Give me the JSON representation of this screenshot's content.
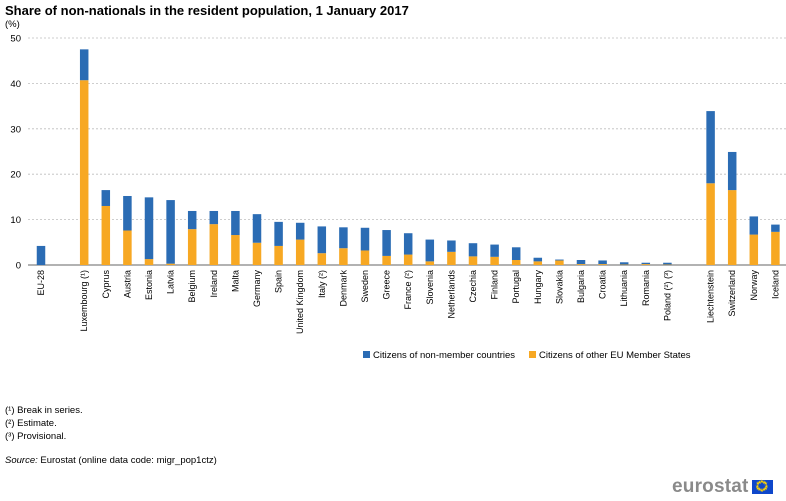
{
  "colors": {
    "non_member": "#2b6cb4",
    "eu_member": "#f7a823",
    "grid": "#bdbdbd",
    "axis": "#666666",
    "logo_text": "#8a8a8a",
    "flag_blue": "#0e47cb",
    "flag_star": "#ffd400"
  },
  "chart_data": {
    "type": "bar",
    "stacked": true,
    "title": "Share of non-nationals in the resident population, 1 January 2017",
    "ylabel": "(%)",
    "ylim": [
      0,
      50
    ],
    "yticks": [
      0,
      10,
      20,
      30,
      40,
      50
    ],
    "grid": true,
    "legend_position": "bottom-center",
    "groups": [
      [
        "EU-28"
      ],
      [
        "Luxembourg (¹)",
        "Cyprus",
        "Austria",
        "Estonia",
        "Latvia",
        "Belgium",
        "Ireland",
        "Malta",
        "Germany",
        "Spain",
        "United Kingdom",
        "Italy (²)",
        "Denmark",
        "Sweden",
        "Greece",
        "France (²)",
        "Slovenia",
        "Netherlands",
        "Czechia",
        "Finland",
        "Portugal",
        "Hungary",
        "Slovakia",
        "Bulgaria",
        "Croatia",
        "Lithuania",
        "Romania",
        "Poland (²) (³)"
      ],
      [
        "Liechtenstein",
        "Switzerland",
        "Norway",
        "Iceland"
      ]
    ],
    "categories": [
      "EU-28",
      "Luxembourg (¹)",
      "Cyprus",
      "Austria",
      "Estonia",
      "Latvia",
      "Belgium",
      "Ireland",
      "Malta",
      "Germany",
      "Spain",
      "United Kingdom",
      "Italy (²)",
      "Denmark",
      "Sweden",
      "Greece",
      "France (²)",
      "Slovenia",
      "Netherlands",
      "Czechia",
      "Finland",
      "Portugal",
      "Hungary",
      "Slovakia",
      "Bulgaria",
      "Croatia",
      "Lithuania",
      "Romania",
      "Poland (²) (³)",
      "Liechtenstein",
      "Switzerland",
      "Norway",
      "Iceland"
    ],
    "series": [
      {
        "name": "Citizens of other EU Member States",
        "key": "eu_member",
        "values": [
          0.0,
          40.7,
          13.0,
          7.6,
          1.3,
          0.3,
          7.9,
          9.0,
          6.6,
          4.9,
          4.2,
          5.6,
          2.6,
          3.7,
          3.2,
          2.0,
          2.3,
          0.8,
          2.9,
          1.9,
          1.8,
          1.1,
          0.8,
          1.0,
          0.2,
          0.2,
          0.1,
          0.2,
          0.1,
          18.0,
          16.5,
          6.7,
          7.3
        ]
      },
      {
        "name": "Citizens of non-member countries",
        "key": "non_member",
        "values": [
          4.2,
          6.8,
          3.5,
          7.6,
          13.6,
          14.0,
          4.0,
          2.9,
          5.3,
          6.3,
          5.3,
          3.7,
          5.9,
          4.6,
          5.0,
          5.7,
          4.7,
          4.8,
          2.5,
          2.9,
          2.7,
          2.8,
          0.8,
          0.2,
          0.9,
          0.8,
          0.5,
          0.3,
          0.4,
          15.9,
          8.4,
          4.0,
          1.6
        ]
      }
    ]
  },
  "legend": [
    {
      "label": "Citizens of non-member countries",
      "key": "non_member"
    },
    {
      "label": "Citizens of other EU Member States",
      "key": "eu_member"
    }
  ],
  "footnotes": [
    "(¹) Break in series.",
    "(²) Estimate.",
    "(³) Provisional."
  ],
  "source": {
    "label": "Source:",
    "text": "Eurostat (online data code: migr_pop1ctz)"
  },
  "logo": {
    "text": "eurostat"
  }
}
